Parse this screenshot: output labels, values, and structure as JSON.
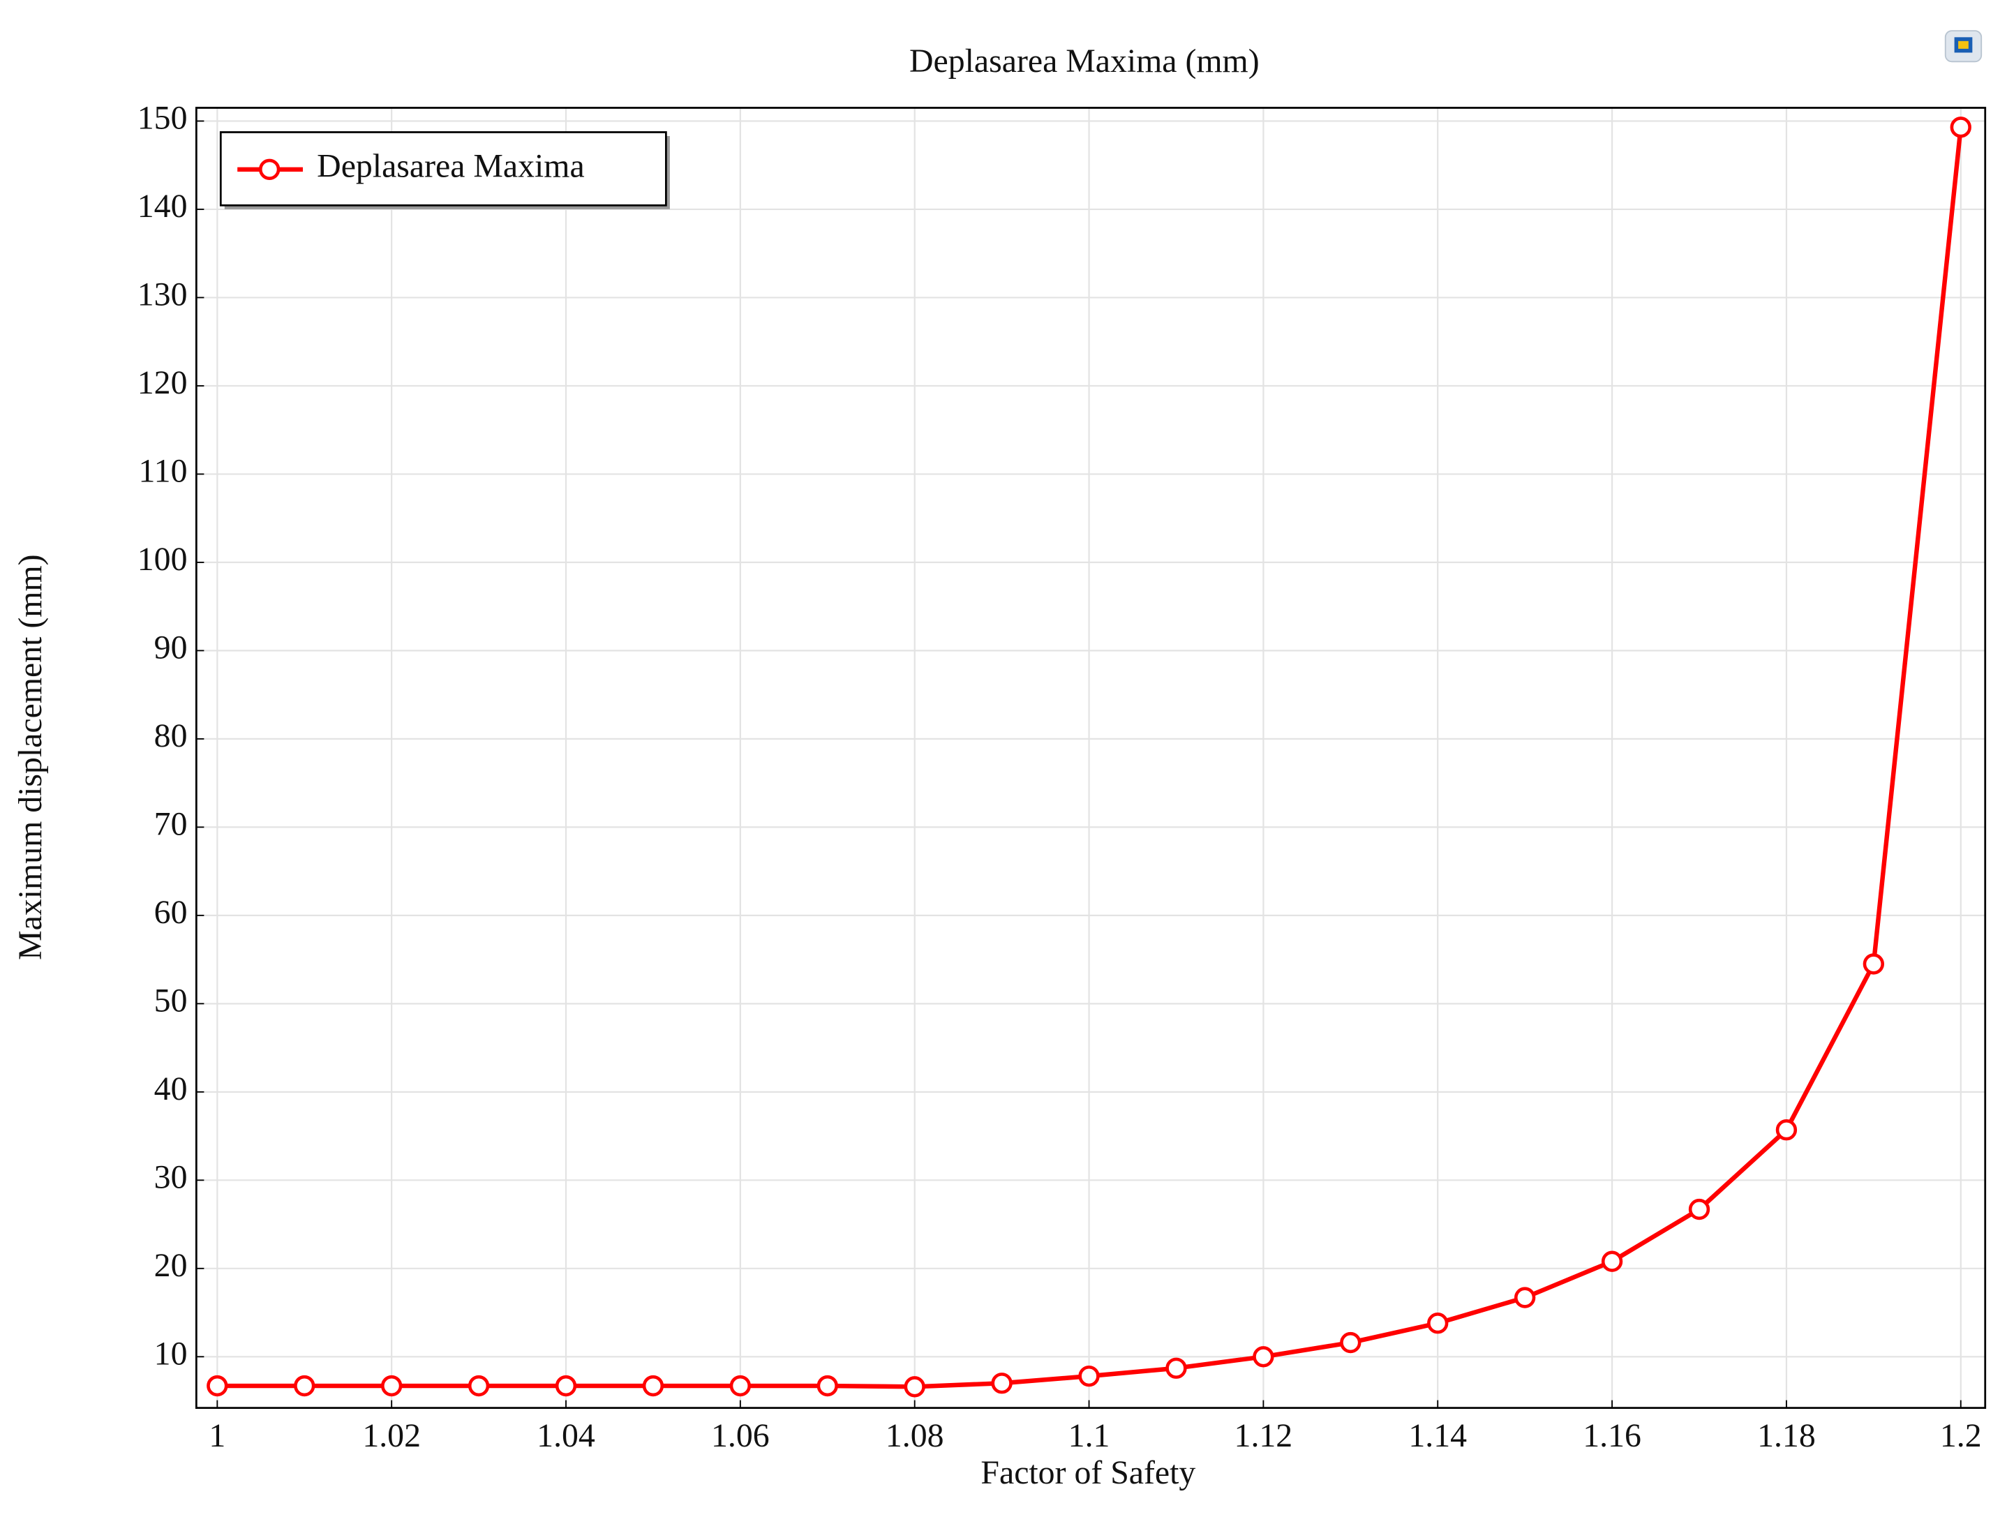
{
  "chart_data": {
    "type": "line",
    "title": "Deplasarea Maxima (mm)",
    "x_label": "Factor of Safety",
    "y_label": "Maximum displacement (mm)",
    "x": [
      1,
      1.01,
      1.02,
      1.03,
      1.04,
      1.05,
      1.06,
      1.07,
      1.08,
      1.09,
      1.1,
      1.11,
      1.12,
      1.13,
      1.14,
      1.15,
      1.16,
      1.17,
      1.18,
      1.19,
      1.2
    ],
    "series": [
      {
        "name": "Deplasarea Maxima",
        "color": "#ff0000",
        "values": [
          6.7,
          6.7,
          6.7,
          6.7,
          6.7,
          6.7,
          6.7,
          6.7,
          6.6,
          7.0,
          7.8,
          8.7,
          10,
          11.6,
          13.8,
          16.7,
          20.8,
          26.7,
          35.7,
          54.5,
          149.3
        ]
      }
    ],
    "xlim": [
      0.9976,
      1.2028
    ],
    "ylim": [
      4.2,
      151.5
    ],
    "xticks": [
      1,
      1.02,
      1.04,
      1.06,
      1.08,
      1.1,
      1.12,
      1.14,
      1.16,
      1.18,
      1.2
    ],
    "yticks": [
      10,
      20,
      30,
      40,
      50,
      60,
      70,
      80,
      90,
      100,
      110,
      120,
      130,
      140,
      150
    ],
    "grid": true,
    "legend": "upper left"
  }
}
